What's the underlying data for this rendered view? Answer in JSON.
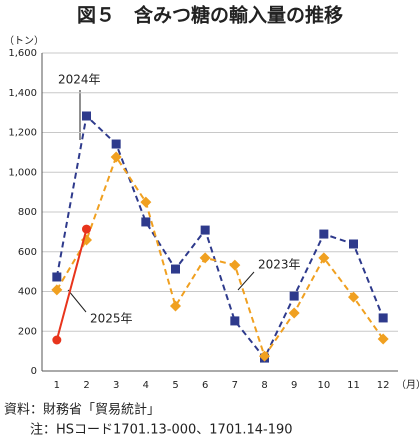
{
  "chart_data": {
    "type": "line",
    "title": "図５　含みつ糖の輸入量の推移",
    "y_unit": "（トン）",
    "x_unit": "（月）",
    "categories": [
      "1",
      "2",
      "3",
      "4",
      "5",
      "6",
      "7",
      "8",
      "9",
      "10",
      "11",
      "12"
    ],
    "series": [
      {
        "name": "2024年",
        "color": "#2e3a8c",
        "marker": "square",
        "dashed": true,
        "values": [
          473,
          1283,
          1142,
          750,
          513,
          709,
          252,
          65,
          377,
          689,
          639,
          267
        ]
      },
      {
        "name": "2023年",
        "color": "#f0a020",
        "marker": "diamond",
        "dashed": true,
        "values": [
          408,
          659,
          1077,
          850,
          327,
          569,
          533,
          75,
          292,
          569,
          372,
          161
        ]
      },
      {
        "name": "2025年",
        "color": "#e8341c",
        "marker": "circle",
        "dashed": false,
        "values": [
          156,
          714,
          null,
          null,
          null,
          null,
          null,
          null,
          null,
          null,
          null,
          null
        ]
      }
    ],
    "ylim": [
      0,
      1600
    ],
    "yticks": [
      0,
      200,
      400,
      600,
      800,
      {
        "value": 1000,
        "label": "1,000"
      },
      {
        "value": 1200,
        "label": "1,200"
      },
      {
        "value": 1400,
        "label": "1,400"
      },
      {
        "value": 1600,
        "label": "1,600"
      }
    ],
    "grid": true,
    "notes": [
      "資料：財務省「貿易統計」",
      "注：HSコード1701.13-000、1701.14-190"
    ]
  }
}
